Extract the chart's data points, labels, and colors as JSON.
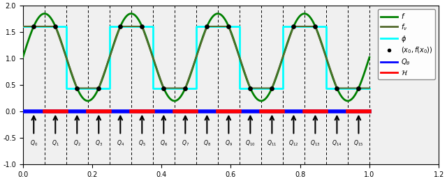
{
  "xlim": [
    0.0,
    1.2
  ],
  "ylim": [
    -1.0,
    2.0
  ],
  "yticks": [
    -1.0,
    -0.5,
    0.0,
    0.5,
    1.0,
    1.5,
    2.0
  ],
  "xticks": [
    0.0,
    0.2,
    0.4,
    0.6,
    0.8,
    1.0,
    1.2
  ],
  "f_color": "#008000",
  "fp_color": "#556B2F",
  "phi_color": "#00FFFF",
  "dot_color": "black",
  "Q0_color": "blue",
  "H_color": "red",
  "legend_labels": [
    "$f$",
    "$f_\\nu$",
    "$\\phi$",
    "$(x_0, f(x_0))$",
    "$Q_\\theta$",
    "$\\mathcal{H}$"
  ],
  "Q_labels": [
    "$Q_0$",
    "$Q_1$",
    "$Q_2$",
    "$Q_3$",
    "$Q_4$",
    "$Q_5$",
    "$Q_6$",
    "$Q_7$",
    "$Q_8$",
    "$Q_9$",
    "$Q_{10}$",
    "$Q_{11}$",
    "$Q_{12}$",
    "$Q_{13}$",
    "$Q_{14}$",
    "$Q_{15}$"
  ],
  "Q_positions": [
    0.03125,
    0.09375,
    0.15625,
    0.21875,
    0.28125,
    0.34375,
    0.40625,
    0.46875,
    0.53125,
    0.59375,
    0.65625,
    0.71875,
    0.78125,
    0.84375,
    0.90625,
    0.96875
  ],
  "vline_positions": [
    0.0625,
    0.125,
    0.1875,
    0.25,
    0.3125,
    0.375,
    0.4375,
    0.5,
    0.5625,
    0.625,
    0.6875,
    0.75,
    0.8125,
    0.875,
    0.9375,
    1.0
  ],
  "background_color": "#f0f0f0"
}
